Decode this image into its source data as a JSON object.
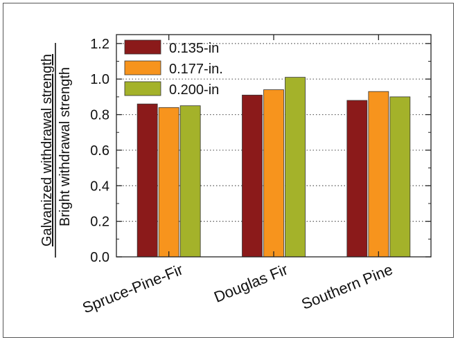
{
  "chart_data": {
    "type": "bar",
    "categories": [
      "Spruce-Pine-Fir",
      "Douglas Fir",
      "Southern Pine"
    ],
    "series": [
      {
        "name": "0.135-in",
        "color": "#8B1A1A",
        "values": [
          0.86,
          0.91,
          0.88
        ]
      },
      {
        "name": "0.177-in.",
        "color": "#F7941D",
        "values": [
          0.84,
          0.94,
          0.93
        ]
      },
      {
        "name": "0.200-in",
        "color": "#A4B22A",
        "values": [
          0.85,
          1.01,
          0.9
        ]
      }
    ],
    "ylabel_numerator": "Galvanized withdrawal strength",
    "ylabel_denominator": "Bright withdrawal strength",
    "ylim": [
      0.0,
      1.25
    ],
    "yticks": [
      "0.0",
      "0.2",
      "0.4",
      "0.6",
      "0.8",
      "1.0",
      "1.2"
    ],
    "grid": "dotted horizontal",
    "legend_position": "top-left"
  }
}
